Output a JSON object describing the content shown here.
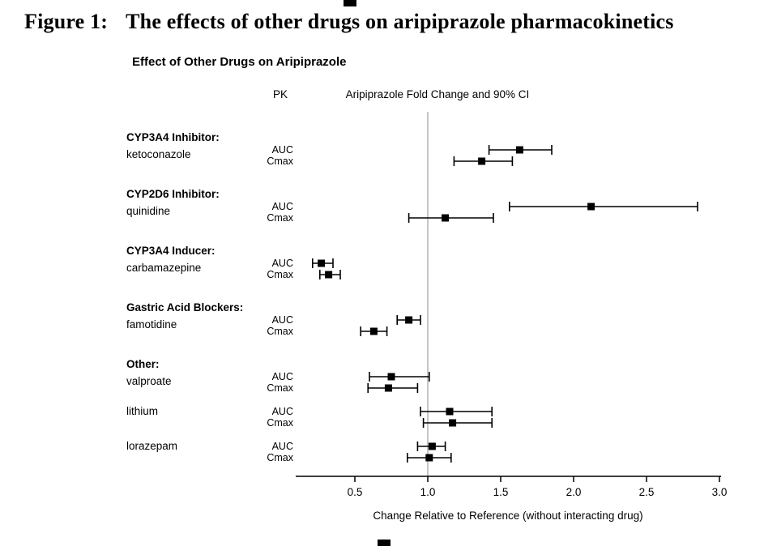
{
  "figure": {
    "label": "Figure 1:",
    "title": "The effects of other drugs on aripiprazole pharmacokinetics"
  },
  "chart_data": {
    "type": "scatter",
    "variant": "forest-plot",
    "title": "Effect of Other Drugs on Aripiprazole",
    "columns": {
      "pk": "PK",
      "ci": "Aripiprazole Fold Change and 90% CI"
    },
    "xlabel": "Change Relative to Reference (without interacting drug)",
    "x_ticks": [
      0.5,
      1.0,
      1.5,
      2.0,
      2.5,
      3.0
    ],
    "x_range": [
      0.1,
      3.05
    ],
    "reference_line": 1.0,
    "grid": "off",
    "legend": "none",
    "colors": {
      "marker": "#000000",
      "reference_line": "#a0a0a0",
      "ink": "#000000"
    },
    "groups": [
      {
        "header": "CYP3A4 Inhibitor:",
        "drug": "ketoconazole",
        "rows": [
          {
            "pk": "AUC",
            "est": 1.63,
            "lo": 1.42,
            "hi": 1.85
          },
          {
            "pk": "Cmax",
            "est": 1.37,
            "lo": 1.18,
            "hi": 1.58
          }
        ]
      },
      {
        "header": "CYP2D6 Inhibitor:",
        "drug": "quinidine",
        "rows": [
          {
            "pk": "AUC",
            "est": 2.12,
            "lo": 1.56,
            "hi": 2.85
          },
          {
            "pk": "Cmax",
            "est": 1.12,
            "lo": 0.87,
            "hi": 1.45
          }
        ]
      },
      {
        "header": "CYP3A4 Inducer:",
        "drug": "carbamazepine",
        "rows": [
          {
            "pk": "AUC",
            "est": 0.27,
            "lo": 0.21,
            "hi": 0.35
          },
          {
            "pk": "Cmax",
            "est": 0.32,
            "lo": 0.26,
            "hi": 0.4
          }
        ]
      },
      {
        "header": "Gastric Acid Blockers:",
        "drug": "famotidine",
        "rows": [
          {
            "pk": "AUC",
            "est": 0.87,
            "lo": 0.79,
            "hi": 0.95
          },
          {
            "pk": "Cmax",
            "est": 0.63,
            "lo": 0.54,
            "hi": 0.72
          }
        ]
      },
      {
        "header": "Other:",
        "drug": "valproate",
        "rows": [
          {
            "pk": "AUC",
            "est": 0.75,
            "lo": 0.6,
            "hi": 1.01
          },
          {
            "pk": "Cmax",
            "est": 0.73,
            "lo": 0.59,
            "hi": 0.93
          }
        ]
      },
      {
        "header": null,
        "drug": "lithium",
        "rows": [
          {
            "pk": "AUC",
            "est": 1.15,
            "lo": 0.95,
            "hi": 1.44
          },
          {
            "pk": "Cmax",
            "est": 1.17,
            "lo": 0.97,
            "hi": 1.44
          }
        ]
      },
      {
        "header": null,
        "drug": "lorazepam",
        "rows": [
          {
            "pk": "AUC",
            "est": 1.03,
            "lo": 0.93,
            "hi": 1.12
          },
          {
            "pk": "Cmax",
            "est": 1.01,
            "lo": 0.86,
            "hi": 1.16
          }
        ]
      }
    ]
  }
}
